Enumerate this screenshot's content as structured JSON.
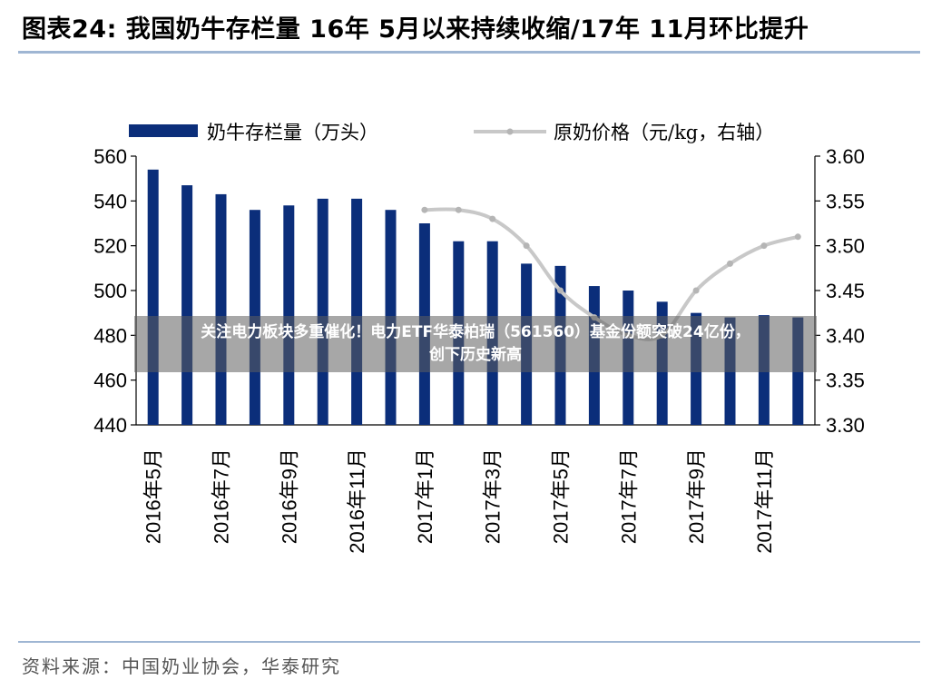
{
  "figure": {
    "title": "图表24:  我国奶牛存栏量 16年 5月以来持续收缩/17年 11月环比提升",
    "source": "资料来源：中国奶业协会，华泰研究"
  },
  "overlay": {
    "line1": "关注电力板块多重催化！电力ETF华泰柏瑞（561560）基金份额突破24亿份，",
    "line2": "创下历史新高"
  },
  "chart_data": {
    "type": "bar",
    "categories": [
      "2016年5月",
      "2016年6月",
      "2016年7月",
      "2016年8月",
      "2016年9月",
      "2016年10月",
      "2016年11月",
      "2016年12月",
      "2017年1月",
      "2017年2月",
      "2017年3月",
      "2017年4月",
      "2017年5月",
      "2017年6月",
      "2017年7月",
      "2017年8月",
      "2017年9月",
      "2017年10月",
      "2017年11月",
      "2017年12月"
    ],
    "x_tick_labels": [
      "2016年5月",
      "2016年7月",
      "2016年9月",
      "2016年11月",
      "2017年1月",
      "2017年3月",
      "2017年5月",
      "2017年7月",
      "2017年9月",
      "2017年11月"
    ],
    "series": [
      {
        "name": "奶牛存栏量（万头）",
        "axis": "left",
        "type": "bar",
        "color": "#0b2e7a",
        "values": [
          554,
          547,
          543,
          536,
          538,
          541,
          541,
          536,
          530,
          522,
          522,
          512,
          511,
          502,
          500,
          495,
          490,
          488,
          489,
          488
        ]
      },
      {
        "name": "原奶价格（元/kg，右轴）",
        "axis": "right",
        "type": "line",
        "color": "#c8c8c8",
        "values": [
          null,
          null,
          null,
          null,
          null,
          null,
          null,
          null,
          3.54,
          3.54,
          3.53,
          3.5,
          3.45,
          3.42,
          3.4,
          3.4,
          3.45,
          3.48,
          3.5,
          3.51
        ]
      }
    ],
    "y_left": {
      "min": 440,
      "max": 560,
      "ticks": [
        440,
        460,
        480,
        500,
        520,
        540,
        560
      ]
    },
    "y_right": {
      "min": 3.3,
      "max": 3.6,
      "ticks": [
        "3.30",
        "3.35",
        "3.40",
        "3.45",
        "3.50",
        "3.55",
        "3.60"
      ]
    },
    "legend_position": "top",
    "grid": false
  }
}
